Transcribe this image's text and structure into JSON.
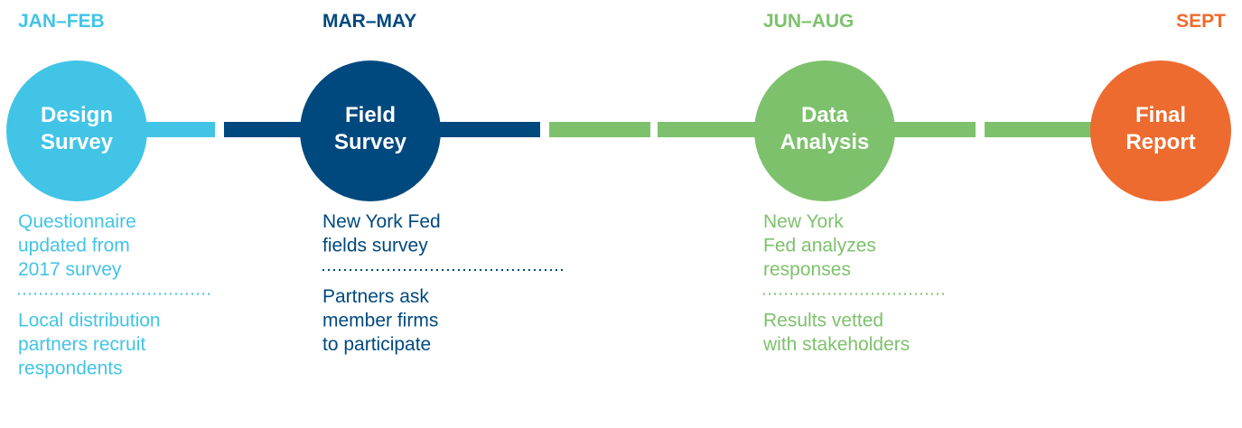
{
  "stages": [
    {
      "period": "JAN–FEB",
      "title": [
        "Design",
        "Survey"
      ],
      "notes": [
        [
          "Questionnaire",
          "updated from",
          "2017 survey"
        ],
        [
          "Local distribution",
          "partners recruit",
          "respondents"
        ]
      ]
    },
    {
      "period": "MAR–MAY",
      "title": [
        "Field",
        "Survey"
      ],
      "notes": [
        [
          "New York Fed",
          "fields survey"
        ],
        [
          "Partners ask",
          "member firms",
          "to participate"
        ]
      ]
    },
    {
      "period": "JUN–AUG",
      "title": [
        "Data",
        "Analysis"
      ],
      "notes": [
        [
          "New York",
          "Fed analyzes",
          "responses"
        ],
        [
          "Results vetted",
          "with stakeholders"
        ]
      ]
    },
    {
      "period": "SEPT",
      "title": [
        "Final",
        "Report"
      ],
      "notes": []
    }
  ]
}
